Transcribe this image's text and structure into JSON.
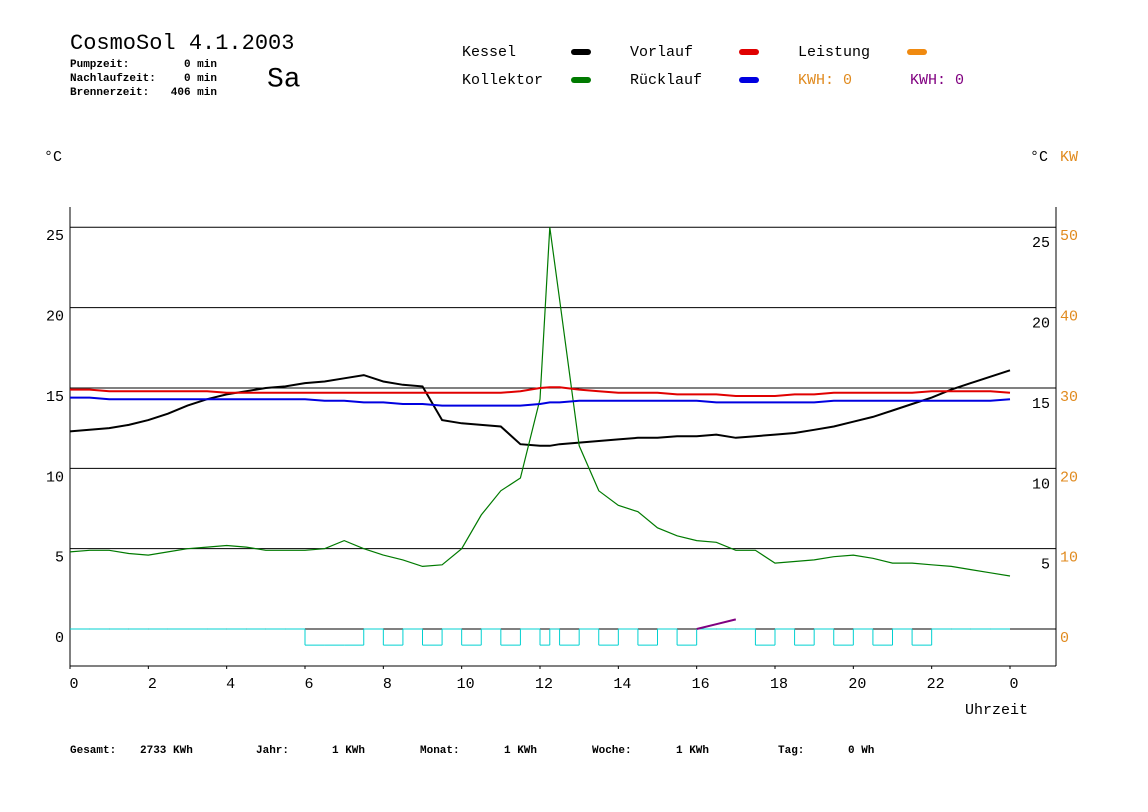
{
  "chart_data": {
    "type": "line",
    "title": "CosmoSol 4.1.2003",
    "day": "Sa",
    "info": [
      [
        "Pumpzeit:",
        "0 min"
      ],
      [
        "Nachlaufzeit:",
        "0 min"
      ],
      [
        "Brennerzeit:",
        "406 min"
      ]
    ],
    "ylabel": "°C",
    "y2label_c": "°C",
    "y2label": "KW",
    "xlabel": "Uhrzeit",
    "kwh_labels": [
      {
        "text": "KWH: 0",
        "color": "#e08a1e"
      },
      {
        "text": "KWH: 0",
        "color": "#800080"
      }
    ],
    "footer": [
      [
        "Gesamt:",
        "2733 KWh"
      ],
      [
        "Jahr:",
        "1 KWh"
      ],
      [
        "Monat:",
        "1 KWh"
      ],
      [
        "Woche:",
        "1 KWh"
      ],
      [
        "Tag:",
        "0 Wh"
      ]
    ],
    "x": [
      0,
      0.5,
      1,
      1.5,
      2,
      2.5,
      3,
      3.5,
      4,
      4.5,
      5,
      5.5,
      6,
      6.5,
      7,
      7.5,
      8,
      8.5,
      9,
      9.5,
      10,
      10.5,
      11,
      11.5,
      12,
      12.25,
      12.5,
      13,
      13.5,
      14,
      14.5,
      15,
      15.5,
      16,
      16.5,
      17,
      17.5,
      18,
      18.5,
      19,
      19.5,
      20,
      20.5,
      21,
      21.5,
      22,
      22.5,
      23,
      23.5,
      24
    ],
    "xlim": [
      0,
      24
    ],
    "xticks": [
      0,
      2,
      4,
      6,
      8,
      10,
      12,
      14,
      16,
      18,
      20,
      22,
      {
        "value": 24,
        "label": "0"
      }
    ],
    "ylim": [
      -2.3,
      26.26
    ],
    "yticks": [
      0,
      5,
      10,
      15,
      20,
      25
    ],
    "yticks_right": [
      5,
      10,
      15,
      20,
      25
    ],
    "y2lim": [
      -4.6,
      52.52
    ],
    "y2ticks": [
      0,
      10,
      20,
      30,
      40,
      50
    ],
    "grid": true,
    "series": [
      {
        "name": "Kessel",
        "color": "#000000",
        "values": [
          12.3,
          12.4,
          12.5,
          12.7,
          13.0,
          13.4,
          13.9,
          14.3,
          14.6,
          14.8,
          15.0,
          15.1,
          15.3,
          15.4,
          15.6,
          15.8,
          15.4,
          15.2,
          15.1,
          13.0,
          12.8,
          12.7,
          12.6,
          11.5,
          11.4,
          11.4,
          11.5,
          11.6,
          11.7,
          11.8,
          11.9,
          11.9,
          12.0,
          12.0,
          12.1,
          11.9,
          12.0,
          12.1,
          12.2,
          12.4,
          12.6,
          12.9,
          13.2,
          13.6,
          14.0,
          14.4,
          14.9,
          15.3,
          15.7,
          16.1
        ]
      },
      {
        "name": "Kollektor",
        "color": "#007a00",
        "values": [
          4.8,
          4.9,
          4.9,
          4.7,
          4.6,
          4.8,
          5.0,
          5.1,
          5.2,
          5.1,
          4.9,
          4.9,
          4.9,
          5.0,
          5.5,
          5.0,
          4.6,
          4.3,
          3.9,
          4.0,
          5.0,
          7.1,
          8.6,
          9.4,
          14.3,
          25.0,
          20.5,
          11.4,
          8.6,
          7.7,
          7.3,
          6.3,
          5.8,
          5.5,
          5.4,
          4.9,
          4.9,
          4.1,
          4.2,
          4.3,
          4.5,
          4.6,
          4.4,
          4.1,
          4.1,
          4.0,
          3.9,
          3.7,
          3.5,
          3.3
        ]
      },
      {
        "name": "Vorlauf",
        "color": "#e00000",
        "values": [
          14.9,
          14.9,
          14.8,
          14.8,
          14.8,
          14.8,
          14.8,
          14.8,
          14.7,
          14.7,
          14.7,
          14.7,
          14.7,
          14.7,
          14.7,
          14.7,
          14.7,
          14.7,
          14.7,
          14.7,
          14.7,
          14.7,
          14.7,
          14.8,
          15.0,
          15.05,
          15.05,
          14.9,
          14.8,
          14.7,
          14.7,
          14.7,
          14.6,
          14.6,
          14.6,
          14.5,
          14.5,
          14.5,
          14.6,
          14.6,
          14.7,
          14.7,
          14.7,
          14.7,
          14.7,
          14.8,
          14.8,
          14.8,
          14.8,
          14.7
        ]
      },
      {
        "name": "Rücklauf",
        "color": "#0000e0",
        "values": [
          14.4,
          14.4,
          14.3,
          14.3,
          14.3,
          14.3,
          14.3,
          14.3,
          14.3,
          14.3,
          14.3,
          14.3,
          14.3,
          14.2,
          14.2,
          14.1,
          14.1,
          14.0,
          14.0,
          13.9,
          13.9,
          13.9,
          13.9,
          13.9,
          14.0,
          14.1,
          14.1,
          14.2,
          14.2,
          14.2,
          14.2,
          14.2,
          14.2,
          14.2,
          14.1,
          14.1,
          14.1,
          14.1,
          14.1,
          14.1,
          14.2,
          14.2,
          14.2,
          14.2,
          14.2,
          14.2,
          14.2,
          14.2,
          14.2,
          14.3
        ]
      },
      {
        "name": "Leistung",
        "color": "#f08a10",
        "axis": "y2",
        "values": [
          null,
          null,
          null,
          null,
          null,
          null,
          null,
          null,
          null,
          null,
          null,
          null,
          null,
          null,
          null,
          null,
          null,
          null,
          null,
          null,
          null,
          null,
          null,
          null,
          null,
          null,
          null,
          null,
          null,
          null,
          null,
          null,
          null,
          null,
          null,
          null,
          null,
          null,
          null,
          null,
          null,
          null,
          null,
          null,
          null,
          null,
          null,
          null,
          null,
          null
        ]
      },
      {
        "color": "#00d0d0",
        "step": true,
        "values": [
          0,
          0,
          0,
          0,
          0,
          0,
          0,
          0,
          0,
          0,
          0,
          0,
          -1,
          -1,
          -1,
          0,
          -1,
          0,
          -1,
          0,
          -1,
          0,
          -1,
          0,
          -1,
          0,
          -1,
          0,
          -1,
          0,
          -1,
          0,
          -1,
          0,
          0,
          0,
          -1,
          0,
          -1,
          0,
          -1,
          0,
          -1,
          0,
          -1,
          0,
          0,
          0,
          0,
          0
        ]
      },
      {
        "color": "#800080",
        "values": [
          null,
          null,
          null,
          null,
          null,
          null,
          null,
          null,
          null,
          null,
          null,
          null,
          null,
          null,
          null,
          null,
          null,
          null,
          null,
          null,
          null,
          null,
          null,
          null,
          null,
          null,
          null,
          null,
          null,
          null,
          null,
          null,
          null,
          0,
          0.3,
          0.6,
          null,
          null,
          null,
          null,
          null,
          null,
          null,
          null,
          null,
          null,
          null,
          null,
          null,
          null
        ]
      }
    ]
  }
}
